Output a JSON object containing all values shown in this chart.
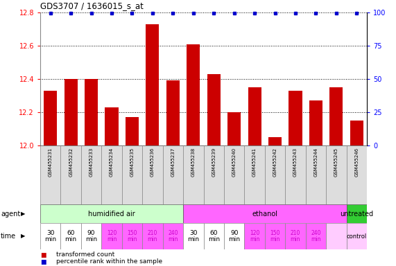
{
  "title": "GDS3707 / 1636015_s_at",
  "samples": [
    "GSM455231",
    "GSM455232",
    "GSM455233",
    "GSM455234",
    "GSM455235",
    "GSM455236",
    "GSM455237",
    "GSM455238",
    "GSM455239",
    "GSM455240",
    "GSM455241",
    "GSM455242",
    "GSM455243",
    "GSM455244",
    "GSM455245",
    "GSM455246"
  ],
  "bar_values": [
    12.33,
    12.4,
    12.4,
    12.23,
    12.17,
    12.73,
    12.39,
    12.61,
    12.43,
    12.2,
    12.35,
    12.05,
    12.33,
    12.27,
    12.35,
    12.15
  ],
  "ylim_left": [
    12.0,
    12.8
  ],
  "ylim_right": [
    0,
    100
  ],
  "yticks_left": [
    12.0,
    12.2,
    12.4,
    12.6,
    12.8
  ],
  "yticks_right": [
    0,
    25,
    50,
    75,
    100
  ],
  "bar_color": "#cc0000",
  "dot_color": "#0000cc",
  "agent_groups": [
    {
      "label": "humidified air",
      "start": 0,
      "end": 7,
      "color": "#ccffcc"
    },
    {
      "label": "ethanol",
      "start": 7,
      "end": 15,
      "color": "#ff66ff"
    },
    {
      "label": "untreated",
      "start": 15,
      "end": 16,
      "color": "#33cc33"
    }
  ],
  "time_white_indices": [
    0,
    1,
    2,
    7,
    8,
    9
  ],
  "time_pink_indices": [
    3,
    4,
    5,
    6,
    10,
    11,
    12,
    13
  ],
  "time_control_indices": [
    14,
    15
  ],
  "time_pink_color": "#ff66ff",
  "time_white_color": "#ffffff",
  "time_control_color": "#ffccff",
  "time_pink_text_color": "#cc00cc",
  "legend_items": [
    {
      "color": "#cc0000",
      "label": "transformed count"
    },
    {
      "color": "#0000cc",
      "label": "percentile rank within the sample"
    }
  ],
  "sample_bg_color": "#dddddd",
  "grid_color": "#888888"
}
